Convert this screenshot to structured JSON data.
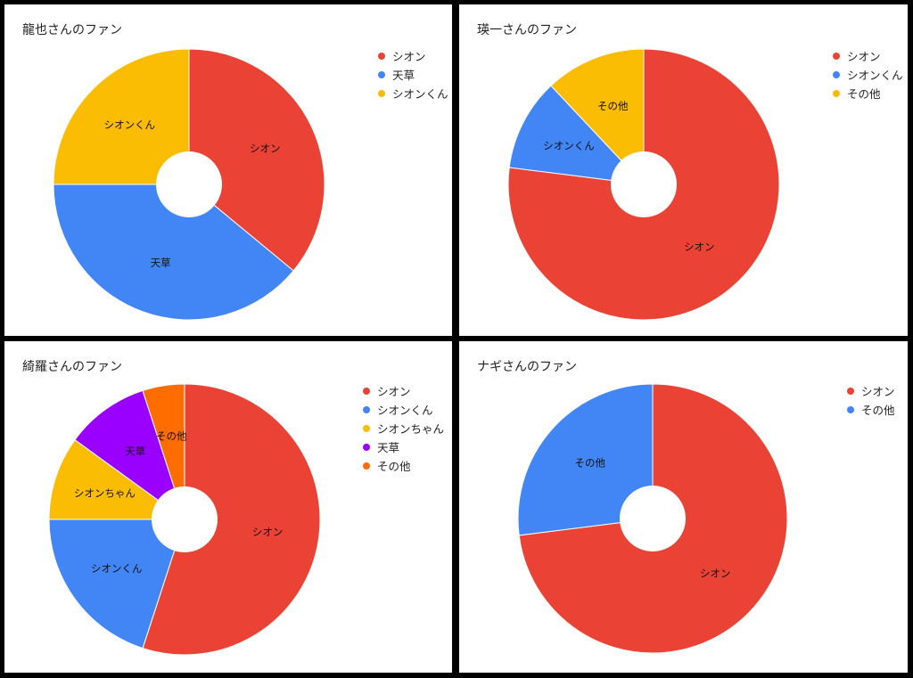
{
  "chart_data": [
    {
      "type": "pie",
      "title": "龍也さんのファン",
      "categories": [
        "シオン",
        "天草",
        "シオンくん"
      ],
      "values": [
        36,
        39,
        25
      ],
      "colors": [
        "#EA4335",
        "#4285F4",
        "#FBBC04"
      ],
      "donut": true,
      "legend": "right"
    },
    {
      "type": "pie",
      "title": "瑛一さんのファン",
      "categories": [
        "シオン",
        "シオンくん",
        "その他"
      ],
      "values": [
        77,
        11,
        12
      ],
      "colors": [
        "#EA4335",
        "#4285F4",
        "#FBBC04"
      ],
      "donut": true,
      "legend": "right"
    },
    {
      "type": "pie",
      "title": "綺羅さんのファン",
      "categories": [
        "シオン",
        "シオンくん",
        "シオンちゃん",
        "天草",
        "その他"
      ],
      "values": [
        55,
        20,
        10,
        10,
        5
      ],
      "colors": [
        "#EA4335",
        "#4285F4",
        "#FBBC04",
        "#9900FF",
        "#FF6D01"
      ],
      "donut": true,
      "legend": "right"
    },
    {
      "type": "pie",
      "title": "ナギさんのファン",
      "categories": [
        "シオン",
        "その他"
      ],
      "values": [
        73,
        27
      ],
      "colors": [
        "#EA4335",
        "#4285F4"
      ],
      "donut": true,
      "legend": "right"
    }
  ]
}
